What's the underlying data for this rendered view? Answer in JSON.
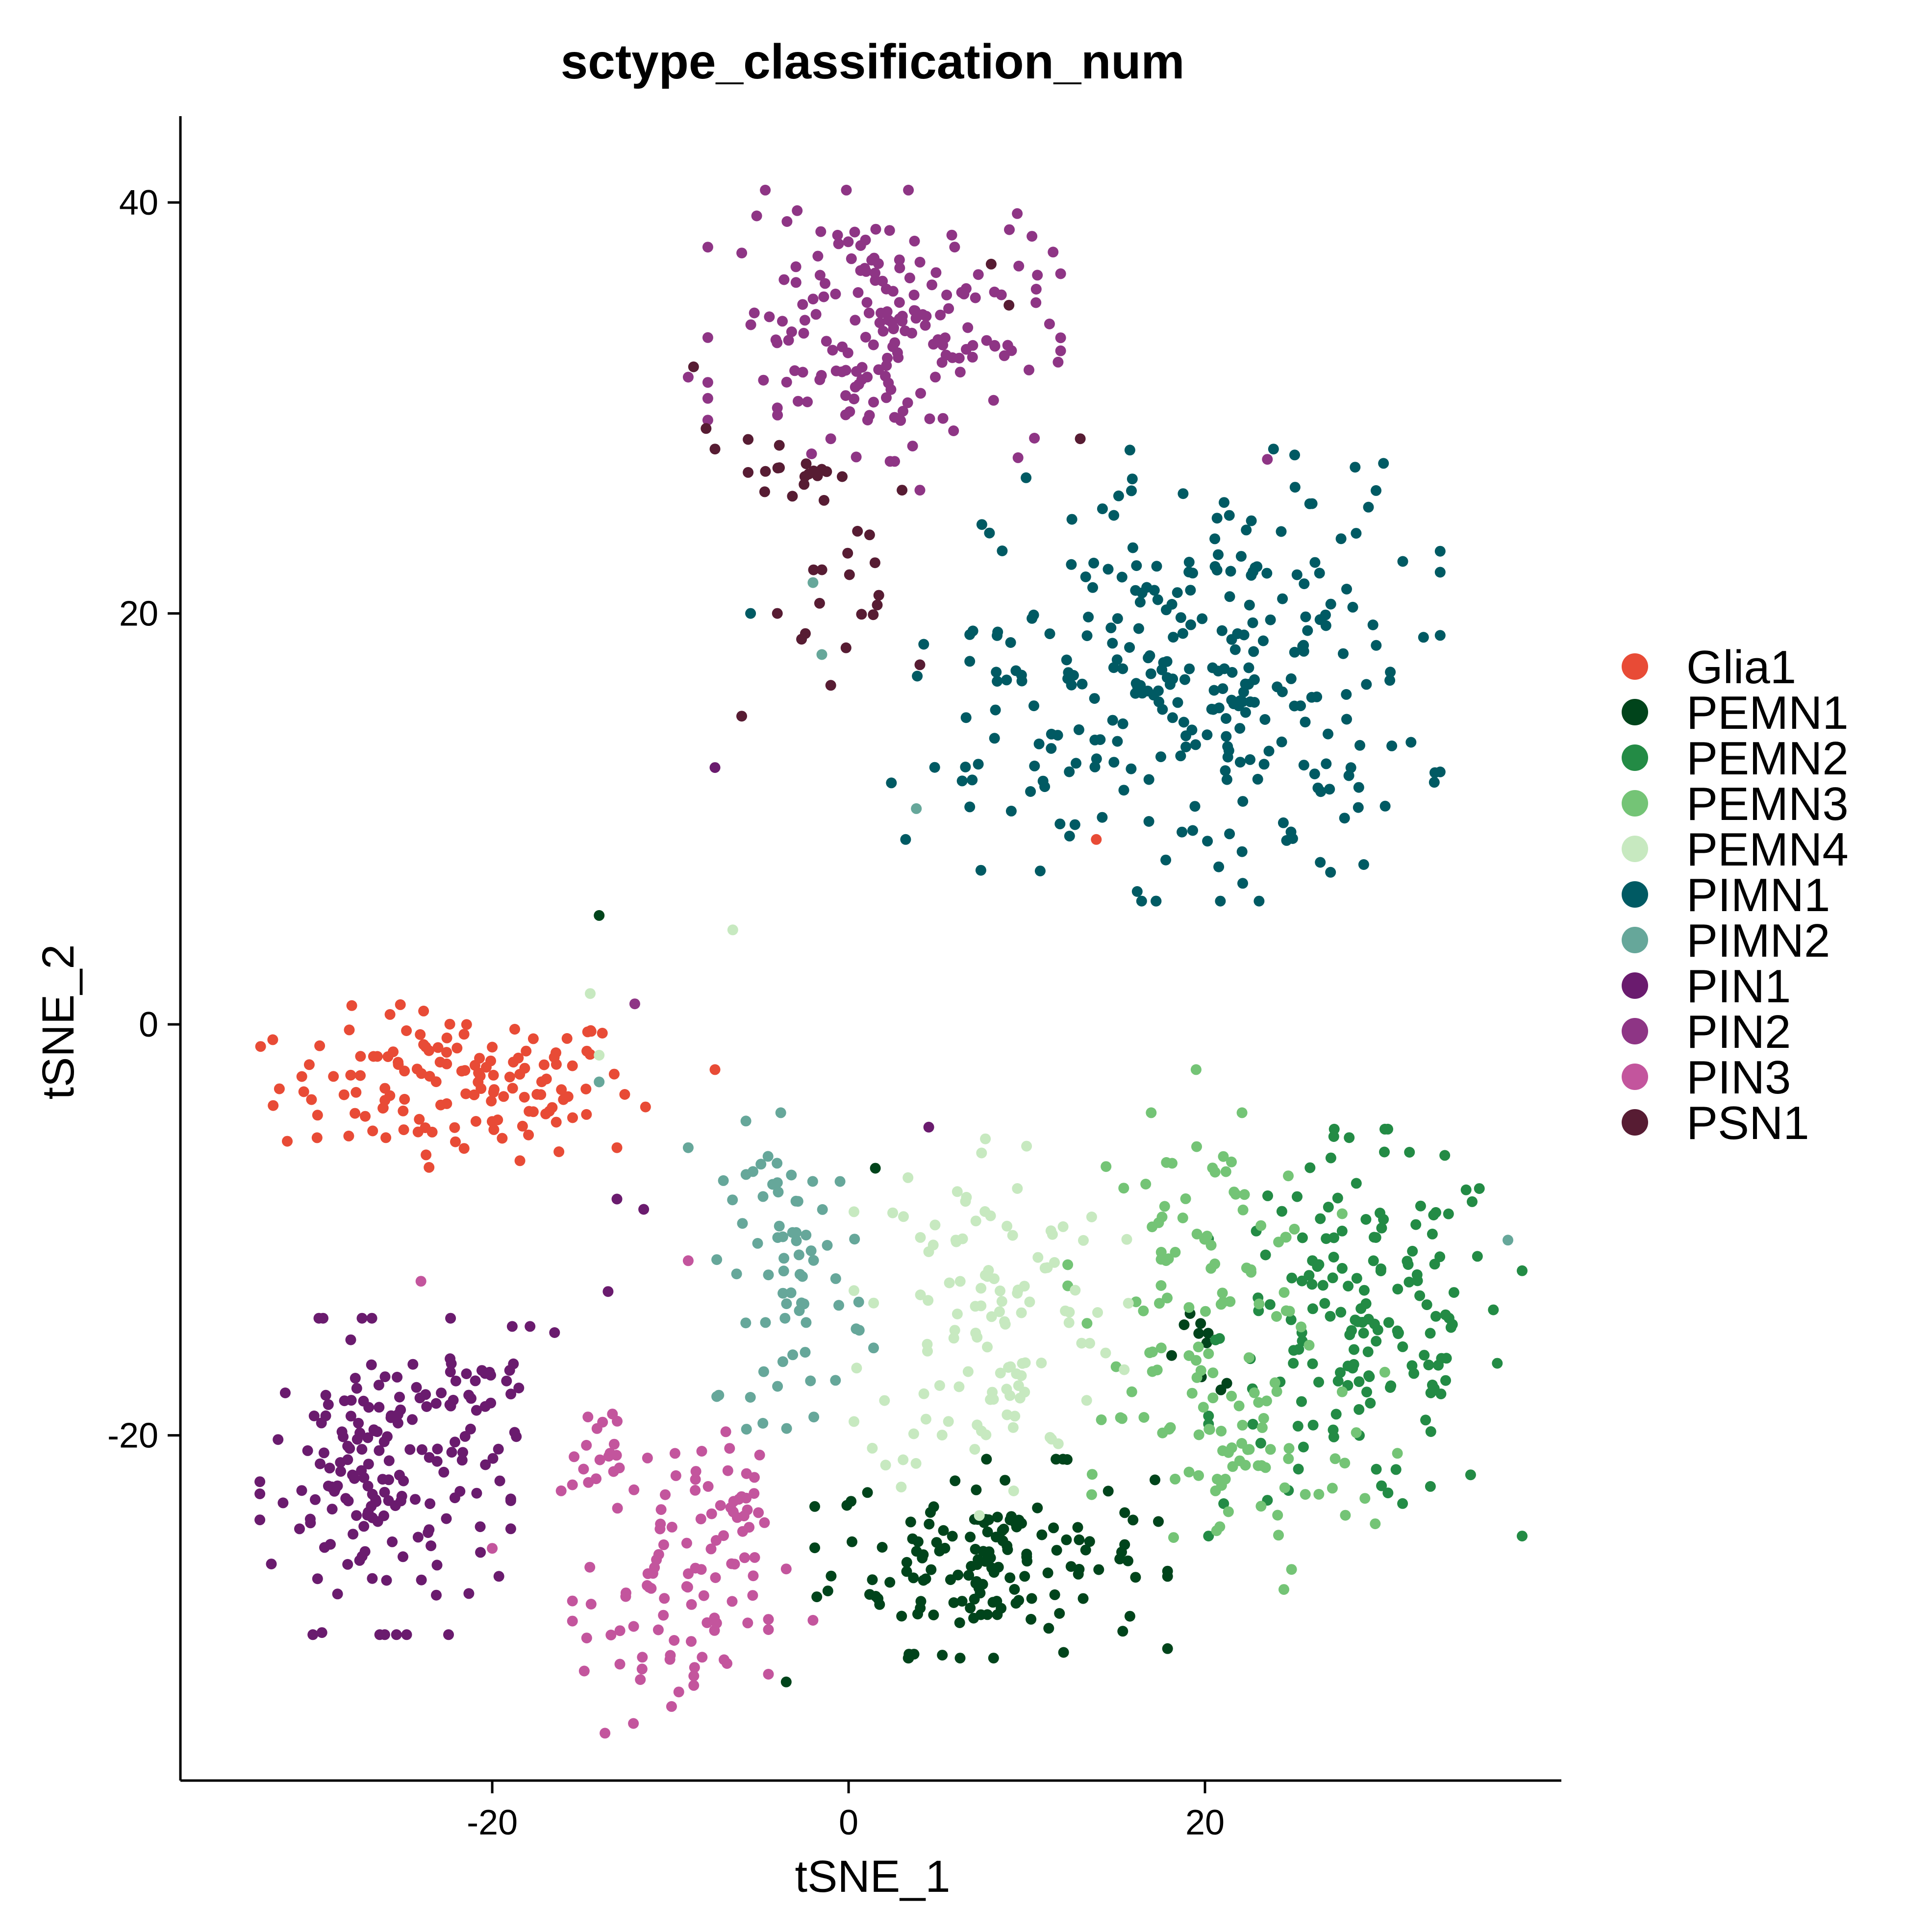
{
  "chart_data": {
    "type": "scatter",
    "title": "sctype_classification_num",
    "xlabel": "tSNE_1",
    "ylabel": "tSNE_2",
    "xlim": [
      -37.5,
      40
    ],
    "ylim": [
      -36.8,
      44.2
    ],
    "xticks": [
      -20,
      0,
      20
    ],
    "yticks": [
      -20,
      0,
      20,
      40
    ],
    "grid": false,
    "legend": "right",
    "series": [
      {
        "name": "Glia1",
        "color": "#E84B36",
        "clusters": [
          {
            "cx": -22,
            "cy": -3,
            "sx": 5,
            "sy": 1.8,
            "n": 140
          }
        ],
        "points": [
          [
            -13,
            -6
          ],
          [
            -7.5,
            -2.2
          ],
          [
            13.9,
            9
          ]
        ]
      },
      {
        "name": "PEMN1",
        "color": "#00441B",
        "clusters": [
          {
            "cx": 8,
            "cy": -26,
            "sx": 4.5,
            "sy": 2.2,
            "n": 150
          },
          {
            "cx": 20,
            "cy": -16,
            "sx": 1.3,
            "sy": 1,
            "n": 10
          }
        ],
        "points": [
          [
            -14,
            5.3
          ],
          [
            -3.5,
            -32
          ],
          [
            1.5,
            -7
          ]
        ]
      },
      {
        "name": "PEMN2",
        "color": "#238B45",
        "clusters": [
          {
            "cx": 29,
            "cy": -15,
            "sx": 4,
            "sy": 4.5,
            "n": 170
          }
        ],
        "points": []
      },
      {
        "name": "PEMN3",
        "color": "#74C476",
        "clusters": [
          {
            "cx": 20,
            "cy": -12,
            "sx": 3.5,
            "sy": 3.5,
            "n": 90
          },
          {
            "cx": 22,
            "cy": -22,
            "sx": 4,
            "sy": 2.5,
            "n": 60
          }
        ],
        "points": [
          [
            19.5,
            -2.2
          ]
        ]
      },
      {
        "name": "PEMN4",
        "color": "#C7E9C0",
        "clusters": [
          {
            "cx": 8,
            "cy": -14,
            "sx": 3.5,
            "sy": 4.5,
            "n": 120
          }
        ],
        "points": [
          [
            -6.5,
            4.6
          ],
          [
            -14.5,
            1.5
          ],
          [
            -14,
            -1.5
          ]
        ]
      },
      {
        "name": "PIMN1",
        "color": "#005A63",
        "clusters": [
          {
            "cx": 20,
            "cy": 17,
            "sx": 6,
            "sy": 5,
            "n": 270
          },
          {
            "cx": 9,
            "cy": 13,
            "sx": 3,
            "sy": 2.5,
            "n": 30
          }
        ],
        "points": [
          [
            -5.5,
            20
          ],
          [
            17.8,
            8
          ],
          [
            3.2,
            9
          ]
        ]
      },
      {
        "name": "PIMN2",
        "color": "#66A79A",
        "clusters": [
          {
            "cx": -3,
            "cy": -12,
            "sx": 2,
            "sy": 3.5,
            "n": 70
          }
        ],
        "points": [
          [
            -9,
            -6
          ],
          [
            -2,
            21.5
          ],
          [
            -1.5,
            18
          ],
          [
            3.8,
            10.5
          ],
          [
            -14,
            -2.8
          ],
          [
            37,
            -10.5
          ]
        ]
      },
      {
        "name": "PIN1",
        "color": "#6A1B6E",
        "clusters": [
          {
            "cx": -26,
            "cy": -22,
            "sx": 3.2,
            "sy": 3.5,
            "n": 170
          },
          {
            "cx": -20,
            "cy": -18,
            "sx": 1.3,
            "sy": 1.5,
            "n": 20
          }
        ],
        "points": [
          [
            -13,
            -8.5
          ],
          [
            -11.5,
            -9
          ],
          [
            -13.5,
            -13
          ],
          [
            -16.5,
            -15
          ],
          [
            -7.5,
            12.5
          ],
          [
            4.5,
            -5
          ]
        ]
      },
      {
        "name": "PIN2",
        "color": "#8E3585",
        "clusters": [
          {
            "cx": 2,
            "cy": 34,
            "sx": 4.5,
            "sy": 3,
            "n": 190
          }
        ],
        "points": [
          [
            -9,
            31.5
          ],
          [
            -4,
            30
          ],
          [
            -1,
            28.5
          ],
          [
            4,
            26
          ],
          [
            23.5,
            27.5
          ],
          [
            -12,
            1
          ]
        ]
      },
      {
        "name": "PIN3",
        "color": "#C3559D",
        "clusters": [
          {
            "cx": -10,
            "cy": -28,
            "sx": 2.5,
            "sy": 3.5,
            "n": 90
          },
          {
            "cx": -14,
            "cy": -21,
            "sx": 1.3,
            "sy": 1.2,
            "n": 20
          },
          {
            "cx": -6,
            "cy": -23,
            "sx": 1,
            "sy": 1.5,
            "n": 15
          }
        ],
        "points": [
          [
            -24,
            -12.5
          ],
          [
            -20,
            -25.5
          ],
          [
            -2,
            -29
          ],
          [
            -3.5,
            -26.5
          ],
          [
            -9,
            -11.5
          ]
        ]
      },
      {
        "name": "PSN1",
        "color": "#571C33",
        "clusters": [
          {
            "cx": -3,
            "cy": 27,
            "sx": 1.2,
            "sy": 0.8,
            "n": 18
          },
          {
            "cx": 0,
            "cy": 21,
            "sx": 1.2,
            "sy": 1.5,
            "n": 14
          }
        ],
        "points": [
          [
            -8.7,
            32
          ],
          [
            -8,
            29
          ],
          [
            -7.5,
            28
          ],
          [
            -6,
            15
          ],
          [
            -4,
            20
          ],
          [
            -1,
            16.5
          ],
          [
            0.5,
            24
          ],
          [
            3,
            26
          ],
          [
            4,
            17.5
          ],
          [
            8,
            37
          ],
          [
            9,
            35
          ],
          [
            13,
            28.5
          ]
        ]
      }
    ]
  }
}
